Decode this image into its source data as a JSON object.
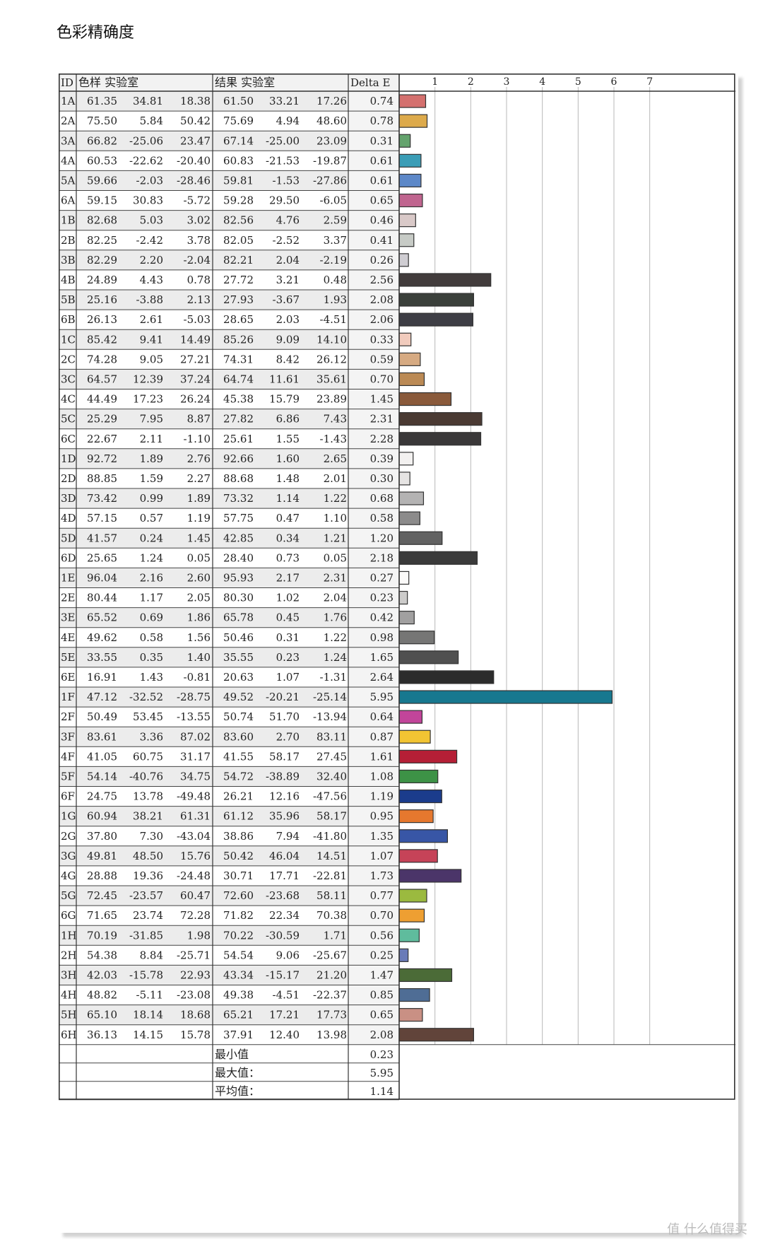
{
  "page": {
    "title": "色彩精确度"
  },
  "header": {
    "id": "ID",
    "sample": "色样 实验室",
    "result": "结果 实验室",
    "delta": "Delta E"
  },
  "footer": {
    "min_label": "最小值",
    "min_value": "0.23",
    "max_label": "最大值：",
    "max_value": "5.95",
    "avg_label": "平均值：",
    "avg_value": "1.14"
  },
  "watermark": "值 什么值得买",
  "chart_data": {
    "type": "bar",
    "orientation": "horizontal",
    "title": "",
    "xlim": [
      0,
      7.5
    ],
    "xticks": [
      1,
      2,
      3,
      4,
      5,
      6,
      7
    ],
    "grid": true,
    "rows": [
      {
        "id": "1A",
        "s": [
          "61.35",
          "34.81",
          "18.38"
        ],
        "r": [
          "61.50",
          "33.21",
          "17.26"
        ],
        "de": 0.74,
        "color": "#d4706e"
      },
      {
        "id": "2A",
        "s": [
          "75.50",
          "5.84",
          "50.42"
        ],
        "r": [
          "75.69",
          "4.94",
          "48.60"
        ],
        "de": 0.78,
        "color": "#ddaa4b"
      },
      {
        "id": "3A",
        "s": [
          "66.82",
          "-25.06",
          "23.47"
        ],
        "r": [
          "67.14",
          "-25.00",
          "23.09"
        ],
        "de": 0.31,
        "color": "#64a36d"
      },
      {
        "id": "4A",
        "s": [
          "60.53",
          "-22.62",
          "-20.40"
        ],
        "r": [
          "60.83",
          "-21.53",
          "-19.87"
        ],
        "de": 0.61,
        "color": "#3b9db6"
      },
      {
        "id": "5A",
        "s": [
          "59.66",
          "-2.03",
          "-28.46"
        ],
        "r": [
          "59.81",
          "-1.53",
          "-27.86"
        ],
        "de": 0.61,
        "color": "#5d88c8"
      },
      {
        "id": "6A",
        "s": [
          "59.15",
          "30.83",
          "-5.72"
        ],
        "r": [
          "59.28",
          "29.50",
          "-6.05"
        ],
        "de": 0.65,
        "color": "#c0658f"
      },
      {
        "id": "1B",
        "s": [
          "82.68",
          "5.03",
          "3.02"
        ],
        "r": [
          "82.56",
          "4.76",
          "2.59"
        ],
        "de": 0.46,
        "color": "#d9c9c8"
      },
      {
        "id": "2B",
        "s": [
          "82.25",
          "-2.42",
          "3.78"
        ],
        "r": [
          "82.05",
          "-2.52",
          "3.37"
        ],
        "de": 0.41,
        "color": "#c7cbc6"
      },
      {
        "id": "3B",
        "s": [
          "82.29",
          "2.20",
          "-2.04"
        ],
        "r": [
          "82.21",
          "2.04",
          "-2.19"
        ],
        "de": 0.26,
        "color": "#cfcdd2"
      },
      {
        "id": "4B",
        "s": [
          "24.89",
          "4.43",
          "0.78"
        ],
        "r": [
          "27.72",
          "3.21",
          "0.48"
        ],
        "de": 2.56,
        "color": "#423c3c"
      },
      {
        "id": "5B",
        "s": [
          "25.16",
          "-3.88",
          "2.13"
        ],
        "r": [
          "27.93",
          "-3.67",
          "1.93"
        ],
        "de": 2.08,
        "color": "#3b403b"
      },
      {
        "id": "6B",
        "s": [
          "26.13",
          "2.61",
          "-5.03"
        ],
        "r": [
          "28.65",
          "2.03",
          "-4.51"
        ],
        "de": 2.06,
        "color": "#3e3e45"
      },
      {
        "id": "1C",
        "s": [
          "85.42",
          "9.41",
          "14.49"
        ],
        "r": [
          "85.26",
          "9.09",
          "14.10"
        ],
        "de": 0.33,
        "color": "#f1cbbd"
      },
      {
        "id": "2C",
        "s": [
          "74.28",
          "9.05",
          "27.21"
        ],
        "r": [
          "74.31",
          "8.42",
          "26.12"
        ],
        "de": 0.59,
        "color": "#d6aa82"
      },
      {
        "id": "3C",
        "s": [
          "64.57",
          "12.39",
          "37.24"
        ],
        "r": [
          "64.74",
          "11.61",
          "35.61"
        ],
        "de": 0.7,
        "color": "#bb8a55"
      },
      {
        "id": "4C",
        "s": [
          "44.49",
          "17.23",
          "26.24"
        ],
        "r": [
          "45.38",
          "15.79",
          "23.89"
        ],
        "de": 1.45,
        "color": "#8a5a3b"
      },
      {
        "id": "5C",
        "s": [
          "25.29",
          "7.95",
          "8.87"
        ],
        "r": [
          "27.82",
          "6.86",
          "7.43"
        ],
        "de": 2.31,
        "color": "#4a3a33"
      },
      {
        "id": "6C",
        "s": [
          "22.67",
          "2.11",
          "-1.10"
        ],
        "r": [
          "25.61",
          "1.55",
          "-1.43"
        ],
        "de": 2.28,
        "color": "#3a3839"
      },
      {
        "id": "1D",
        "s": [
          "92.72",
          "1.89",
          "2.76"
        ],
        "r": [
          "92.66",
          "1.60",
          "2.65"
        ],
        "de": 0.39,
        "color": "#f3f1f0"
      },
      {
        "id": "2D",
        "s": [
          "88.85",
          "1.59",
          "2.27"
        ],
        "r": [
          "88.68",
          "1.48",
          "2.01"
        ],
        "de": 0.3,
        "color": "#e6e4e3"
      },
      {
        "id": "3D",
        "s": [
          "73.42",
          "0.99",
          "1.89"
        ],
        "r": [
          "73.32",
          "1.14",
          "1.22"
        ],
        "de": 0.68,
        "color": "#b4b3b3"
      },
      {
        "id": "4D",
        "s": [
          "57.15",
          "0.57",
          "1.19"
        ],
        "r": [
          "57.75",
          "0.47",
          "1.10"
        ],
        "de": 0.58,
        "color": "#8c8b8b"
      },
      {
        "id": "5D",
        "s": [
          "41.57",
          "0.24",
          "1.45"
        ],
        "r": [
          "42.85",
          "0.34",
          "1.21"
        ],
        "de": 1.2,
        "color": "#626262"
      },
      {
        "id": "6D",
        "s": [
          "25.65",
          "1.24",
          "0.05"
        ],
        "r": [
          "28.40",
          "0.73",
          "0.05"
        ],
        "de": 2.18,
        "color": "#3b3b3b"
      },
      {
        "id": "1E",
        "s": [
          "96.04",
          "2.16",
          "2.60"
        ],
        "r": [
          "95.93",
          "2.17",
          "2.31"
        ],
        "de": 0.27,
        "color": "#fbfaf9"
      },
      {
        "id": "2E",
        "s": [
          "80.44",
          "1.17",
          "2.05"
        ],
        "r": [
          "80.30",
          "1.02",
          "2.04"
        ],
        "de": 0.23,
        "color": "#cccbca"
      },
      {
        "id": "3E",
        "s": [
          "65.52",
          "0.69",
          "1.86"
        ],
        "r": [
          "65.78",
          "0.45",
          "1.76"
        ],
        "de": 0.42,
        "color": "#a1a0a0"
      },
      {
        "id": "4E",
        "s": [
          "49.62",
          "0.58",
          "1.56"
        ],
        "r": [
          "50.46",
          "0.31",
          "1.22"
        ],
        "de": 0.98,
        "color": "#767675"
      },
      {
        "id": "5E",
        "s": [
          "33.55",
          "0.35",
          "1.40"
        ],
        "r": [
          "35.55",
          "0.23",
          "1.24"
        ],
        "de": 1.65,
        "color": "#505050"
      },
      {
        "id": "6E",
        "s": [
          "16.91",
          "1.43",
          "-0.81"
        ],
        "r": [
          "20.63",
          "1.07",
          "-1.31"
        ],
        "de": 2.64,
        "color": "#2c2c2c"
      },
      {
        "id": "1F",
        "s": [
          "47.12",
          "-32.52",
          "-28.75"
        ],
        "r": [
          "49.52",
          "-20.21",
          "-25.14"
        ],
        "de": 5.95,
        "color": "#17788f"
      },
      {
        "id": "2F",
        "s": [
          "50.49",
          "53.45",
          "-13.55"
        ],
        "r": [
          "50.74",
          "51.70",
          "-13.94"
        ],
        "de": 0.64,
        "color": "#c2459a"
      },
      {
        "id": "3F",
        "s": [
          "83.61",
          "3.36",
          "87.02"
        ],
        "r": [
          "83.60",
          "2.70",
          "83.11"
        ],
        "de": 0.87,
        "color": "#f2c433"
      },
      {
        "id": "4F",
        "s": [
          "41.05",
          "60.75",
          "31.17"
        ],
        "r": [
          "41.55",
          "58.17",
          "27.45"
        ],
        "de": 1.61,
        "color": "#b51f36"
      },
      {
        "id": "5F",
        "s": [
          "54.14",
          "-40.76",
          "34.75"
        ],
        "r": [
          "54.72",
          "-38.89",
          "32.40"
        ],
        "de": 1.08,
        "color": "#3d9246"
      },
      {
        "id": "6F",
        "s": [
          "24.75",
          "13.78",
          "-49.48"
        ],
        "r": [
          "26.21",
          "12.16",
          "-47.56"
        ],
        "de": 1.19,
        "color": "#1b3c8c"
      },
      {
        "id": "1G",
        "s": [
          "60.94",
          "38.21",
          "61.31"
        ],
        "r": [
          "61.12",
          "35.96",
          "58.17"
        ],
        "de": 0.95,
        "color": "#e6782e"
      },
      {
        "id": "2G",
        "s": [
          "37.80",
          "7.30",
          "-43.04"
        ],
        "r": [
          "38.86",
          "7.94",
          "-41.80"
        ],
        "de": 1.35,
        "color": "#3856a6"
      },
      {
        "id": "3G",
        "s": [
          "49.81",
          "48.50",
          "15.76"
        ],
        "r": [
          "50.42",
          "46.04",
          "14.51"
        ],
        "de": 1.07,
        "color": "#c64358"
      },
      {
        "id": "4G",
        "s": [
          "28.88",
          "19.36",
          "-24.48"
        ],
        "r": [
          "30.71",
          "17.71",
          "-22.81"
        ],
        "de": 1.73,
        "color": "#4b3569"
      },
      {
        "id": "5G",
        "s": [
          "72.45",
          "-23.57",
          "60.47"
        ],
        "r": [
          "72.60",
          "-23.68",
          "58.11"
        ],
        "de": 0.77,
        "color": "#9bba3f"
      },
      {
        "id": "6G",
        "s": [
          "71.65",
          "23.74",
          "72.28"
        ],
        "r": [
          "71.82",
          "22.34",
          "70.38"
        ],
        "de": 0.7,
        "color": "#ee9f32"
      },
      {
        "id": "1H",
        "s": [
          "70.19",
          "-31.85",
          "1.98"
        ],
        "r": [
          "70.22",
          "-30.59",
          "1.71"
        ],
        "de": 0.56,
        "color": "#5fbc9d"
      },
      {
        "id": "2H",
        "s": [
          "54.38",
          "8.84",
          "-25.71"
        ],
        "r": [
          "54.54",
          "9.06",
          "-25.67"
        ],
        "de": 0.25,
        "color": "#6a7bb8"
      },
      {
        "id": "3H",
        "s": [
          "42.03",
          "-15.78",
          "22.93"
        ],
        "r": [
          "43.34",
          "-15.17",
          "21.20"
        ],
        "de": 1.47,
        "color": "#4b6b37"
      },
      {
        "id": "4H",
        "s": [
          "48.82",
          "-5.11",
          "-23.08"
        ],
        "r": [
          "49.38",
          "-4.51",
          "-22.37"
        ],
        "de": 0.85,
        "color": "#4f6d95"
      },
      {
        "id": "5H",
        "s": [
          "65.10",
          "18.14",
          "18.68"
        ],
        "r": [
          "65.21",
          "17.21",
          "17.73"
        ],
        "de": 0.65,
        "color": "#c99084"
      },
      {
        "id": "6H",
        "s": [
          "36.13",
          "14.15",
          "15.78"
        ],
        "r": [
          "37.91",
          "12.40",
          "13.98"
        ],
        "de": 2.08,
        "color": "#61443a"
      }
    ]
  }
}
